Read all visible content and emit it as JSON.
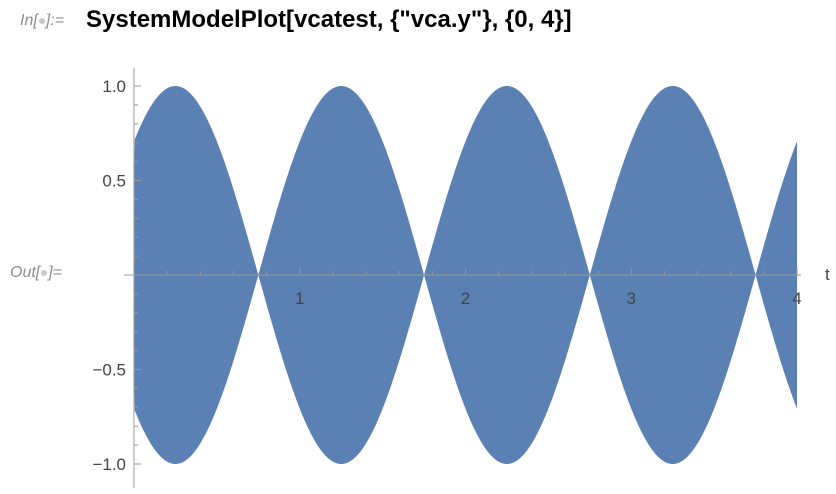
{
  "notebook": {
    "input_label": {
      "prefix": "In[",
      "suffix": "]:="
    },
    "output_label": {
      "prefix": "Out[",
      "suffix": "]="
    },
    "input_code": "SystemModelPlot[vcatest, {\"vca.y\"}, {0, 4}]"
  },
  "chart_data": {
    "type": "area",
    "title": "",
    "xlabel": "t",
    "ylabel": "",
    "xlim": [
      0,
      4
    ],
    "ylim": [
      -1.0,
      1.0
    ],
    "x_ticks": [
      "1",
      "2",
      "3",
      "4"
    ],
    "y_ticks": [
      "1.0",
      "0.5",
      "-0.5",
      "-1.0"
    ],
    "series": [
      {
        "description_color": "#5b80b4",
        "envelope": {
          "kind": "cosine",
          "amplitude": 1.0,
          "period": 1.0,
          "phase_offset": 0.25,
          "formula": "y = +/- |cos(pi*(t-0.25))|"
        }
      }
    ],
    "fill_color": "#5b80b4",
    "axis_color": "#999999",
    "grid": false
  }
}
